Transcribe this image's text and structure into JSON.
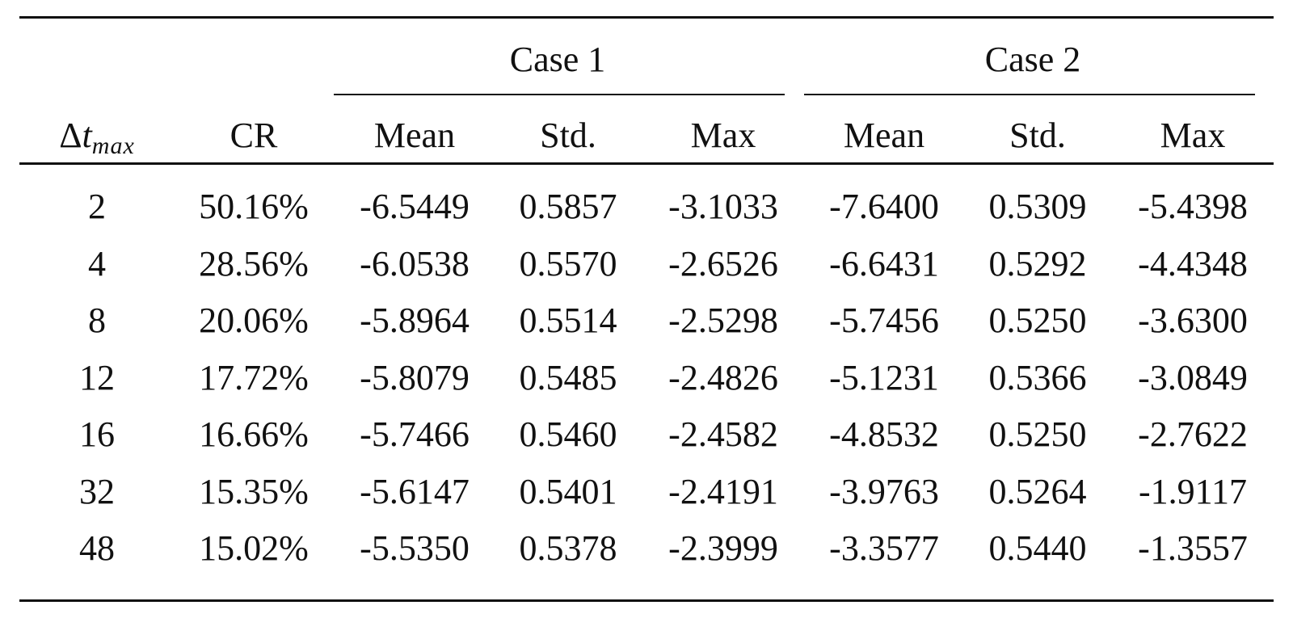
{
  "chart_data": {
    "type": "table",
    "column_groups": [
      {
        "label": "Case 1",
        "columns": [
          "Mean",
          "Std.",
          "Max"
        ]
      },
      {
        "label": "Case 2",
        "columns": [
          "Mean",
          "Std.",
          "Max"
        ]
      }
    ],
    "row_header": {
      "symbol": "Δ",
      "var": "t",
      "sub": "max"
    },
    "columns": [
      "CR",
      "Mean",
      "Std.",
      "Max",
      "Mean",
      "Std.",
      "Max"
    ],
    "rows": [
      {
        "dt": "2",
        "cells": [
          "50.16%",
          "-6.5449",
          "0.5857",
          "-3.1033",
          "-7.6400",
          "0.5309",
          "-5.4398"
        ]
      },
      {
        "dt": "4",
        "cells": [
          "28.56%",
          "-6.0538",
          "0.5570",
          "-2.6526",
          "-6.6431",
          "0.5292",
          "-4.4348"
        ]
      },
      {
        "dt": "8",
        "cells": [
          "20.06%",
          "-5.8964",
          "0.5514",
          "-2.5298",
          "-5.7456",
          "0.5250",
          "-3.6300"
        ]
      },
      {
        "dt": "12",
        "cells": [
          "17.72%",
          "-5.8079",
          "0.5485",
          "-2.4826",
          "-5.1231",
          "0.5366",
          "-3.0849"
        ]
      },
      {
        "dt": "16",
        "cells": [
          "16.66%",
          "-5.7466",
          "0.5460",
          "-2.4582",
          "-4.8532",
          "0.5250",
          "-2.7622"
        ]
      },
      {
        "dt": "32",
        "cells": [
          "15.35%",
          "-5.6147",
          "0.5401",
          "-2.4191",
          "-3.9763",
          "0.5264",
          "-1.9117"
        ]
      },
      {
        "dt": "48",
        "cells": [
          "15.02%",
          "-5.5350",
          "0.5378",
          "-2.3999",
          "-3.3577",
          "0.5440",
          "-1.3557"
        ]
      }
    ]
  }
}
